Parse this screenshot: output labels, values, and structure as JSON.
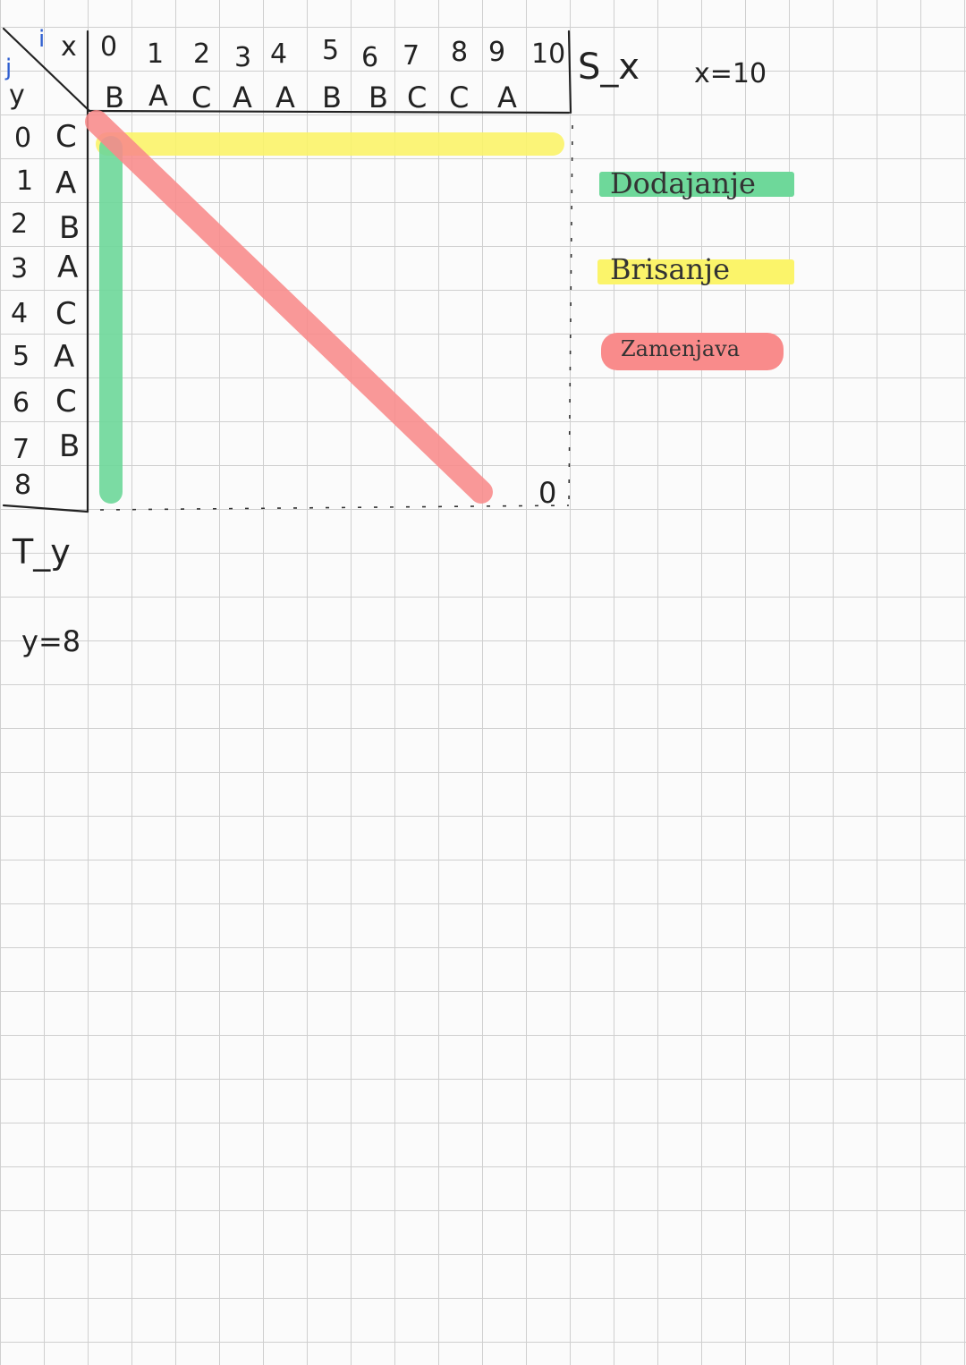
{
  "corner": {
    "j": "j",
    "i": "i",
    "x": "x",
    "y": "y"
  },
  "column_indices": [
    "0",
    "1",
    "2",
    "3",
    "4",
    "5",
    "6",
    "7",
    "8",
    "9",
    "10"
  ],
  "top_string": [
    "B",
    "A",
    "C",
    "A",
    "A",
    "B",
    "B",
    "C",
    "C",
    "A"
  ],
  "row_indices": [
    "0",
    "1",
    "2",
    "3",
    "4",
    "5",
    "6",
    "7",
    "8"
  ],
  "left_string": [
    "C",
    "A",
    "B",
    "A",
    "C",
    "A",
    "C",
    "B"
  ],
  "labels": {
    "s_x": "S_x",
    "x_eq": "x=10",
    "t_y": "T_y",
    "y_eq": "y=8",
    "cell_value": "0"
  },
  "legend": [
    {
      "label": "Dodajanje",
      "color": "#6ed89a"
    },
    {
      "label": "Brisanje",
      "color": "#fbf46a"
    },
    {
      "label": "Zamenjava",
      "color": "#f98b8b"
    }
  ],
  "highlights": {
    "insertion_color": "#6ed89a",
    "deletion_color": "#fbf46a",
    "substitution_color": "#f98b8b"
  }
}
